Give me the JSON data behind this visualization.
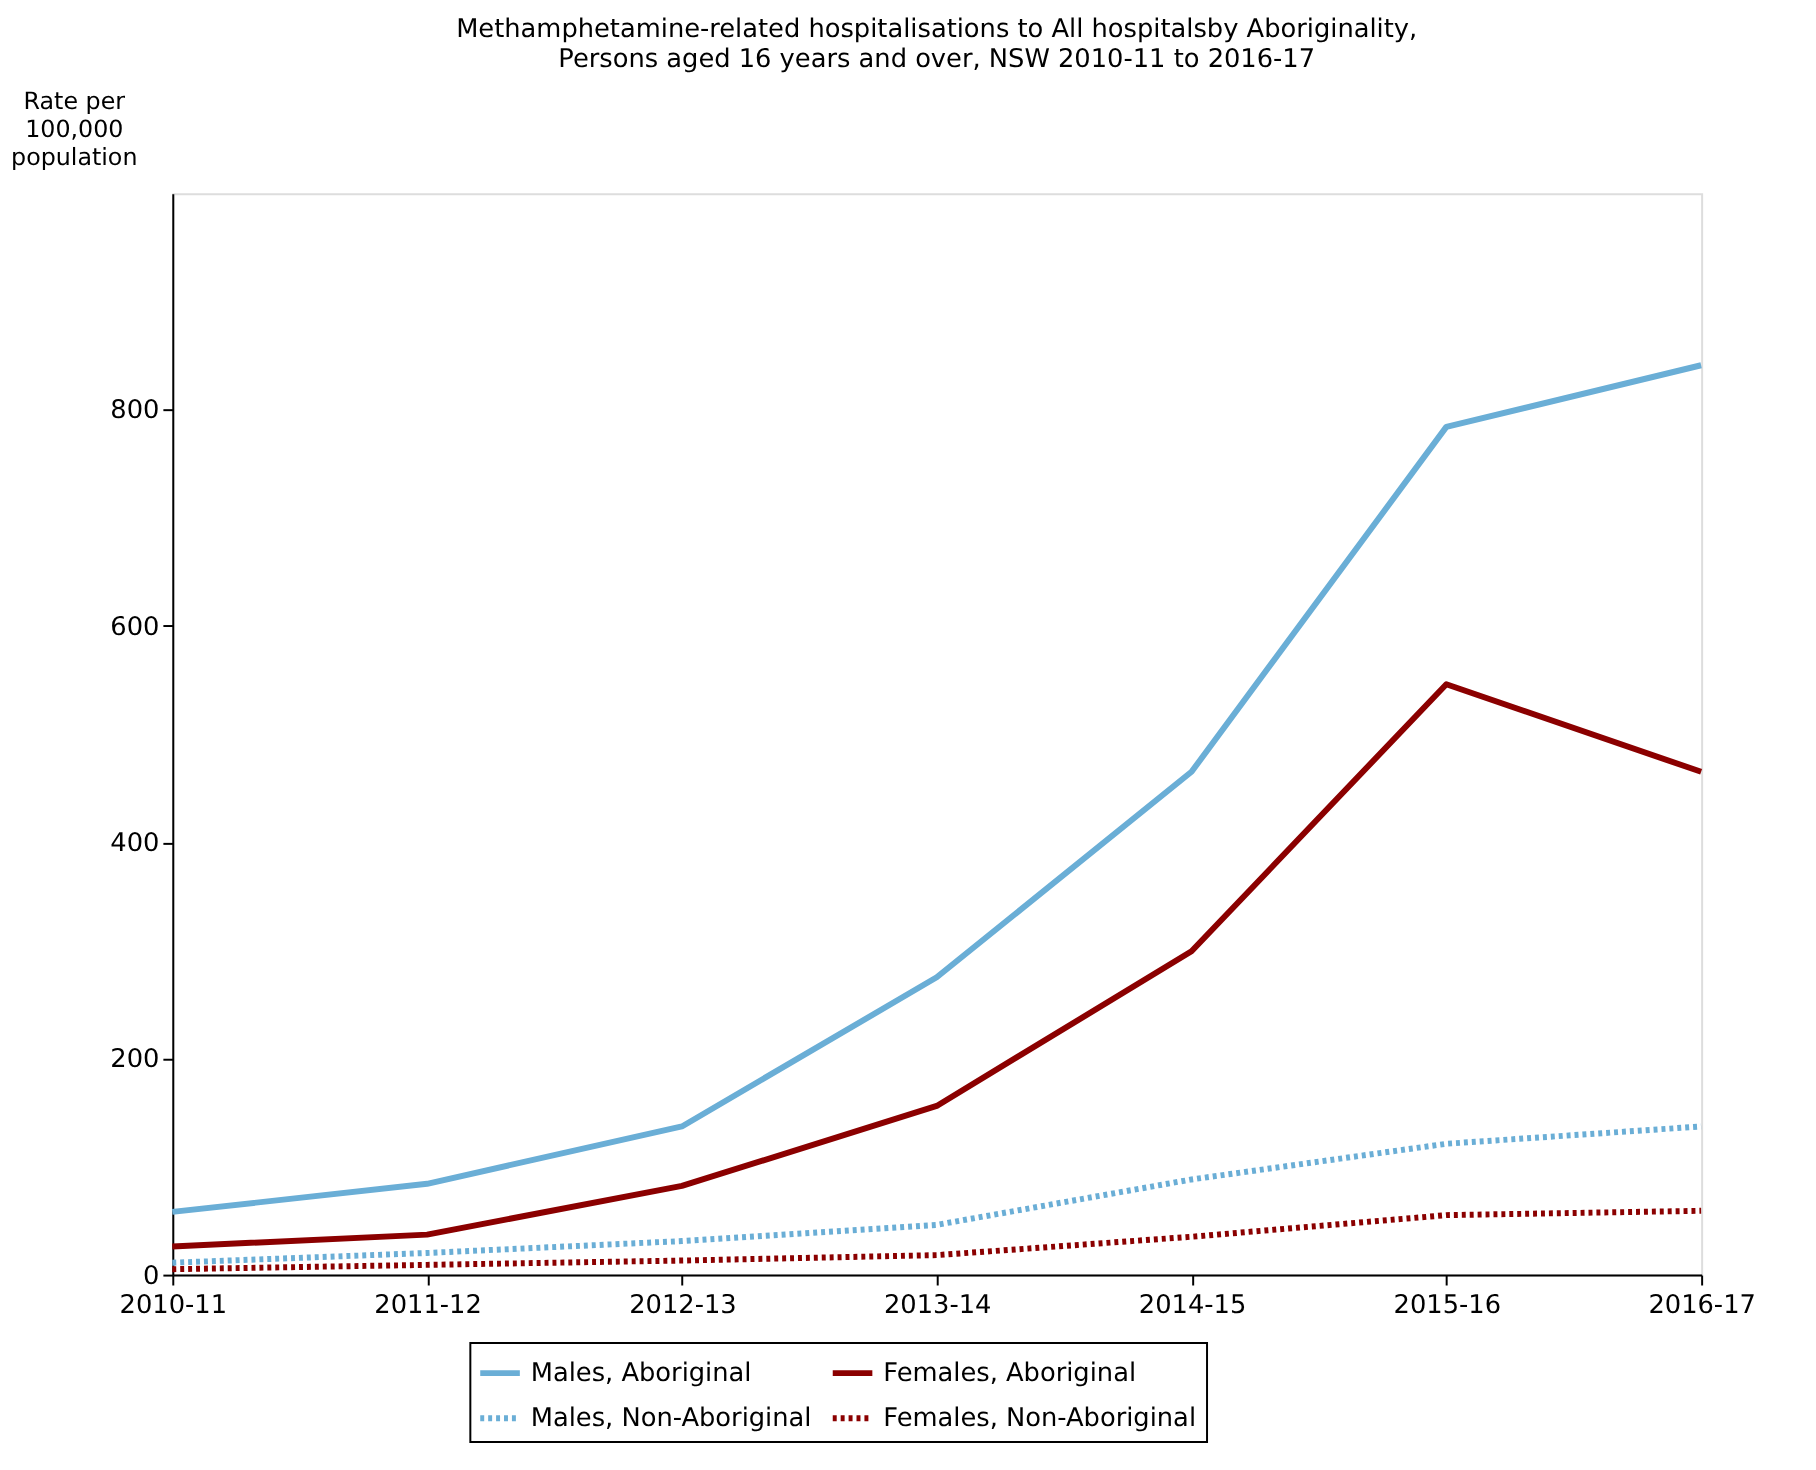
{
  "chart_data": {
    "type": "line",
    "title": "Methamphetamine-related hospitalisations to All hospitalsby Aboriginality,\nPersons aged 16 years and over, NSW 2010-11 to 2016-17",
    "ylabel": "Rate per\n100,000\npopulation",
    "categories": [
      "2010-11",
      "2011-12",
      "2012-13",
      "2013-14",
      "2014-15",
      "2015-16",
      "2016-17"
    ],
    "series": [
      {
        "name": "Males, Aboriginal",
        "color": "#6aaed6",
        "line_style": "solid",
        "values": [
          58,
          84,
          137,
          275,
          465,
          784,
          841
        ]
      },
      {
        "name": "Males, Non-Aboriginal",
        "color": "#6aaed6",
        "line_style": "dotted",
        "values": [
          11,
          20,
          31,
          46,
          88,
          121,
          137
        ]
      },
      {
        "name": "Females, Aboriginal",
        "color": "#8b0000",
        "line_style": "solid",
        "values": [
          26,
          37,
          82,
          156,
          299,
          546,
          465
        ]
      },
      {
        "name": "Females, Non-Aboriginal",
        "color": "#8b0000",
        "line_style": "dotted",
        "values": [
          5,
          9,
          13,
          18,
          35,
          55,
          59
        ]
      }
    ],
    "ylim": [
      0,
      1000
    ],
    "yticks": [
      0,
      200,
      400,
      600,
      800
    ],
    "grid": false,
    "legend": "bottom",
    "marker": "none"
  }
}
